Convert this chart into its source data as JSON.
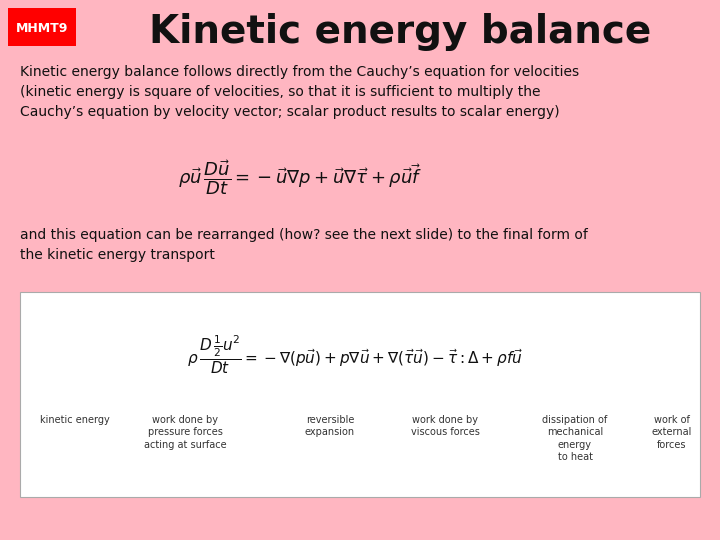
{
  "bg_color": "#ffb6c1",
  "title": "Kinetic energy balance",
  "mhmt_label": "MHMT9",
  "mhmt_bg": "#ff0000",
  "mhmt_fg": "#ffffff",
  "body_text": "Kinetic energy balance follows directly from the Cauchy’s equation for velocities\n(kinetic energy is square of velocities, so that it is sufficient to multiply the\nCauchy’s equation by velocity vector; scalar product results to scalar energy)",
  "body_text2": "and this equation can be rearranged (how? see the next slide) to the final form of\nthe kinetic energy transport",
  "box_color": "#ffffff",
  "label1": "kinetic energy",
  "label2": "work done by\npressure forces\nacting at surface",
  "label3": "reversible\nexpansion",
  "label4": "work done by\nviscous forces",
  "label5": "dissipation of\nmechanical\nenergy\nto heat",
  "label6": "work of\nexternal\nforces",
  "fig_width": 7.2,
  "fig_height": 5.4,
  "fig_dpi": 100
}
